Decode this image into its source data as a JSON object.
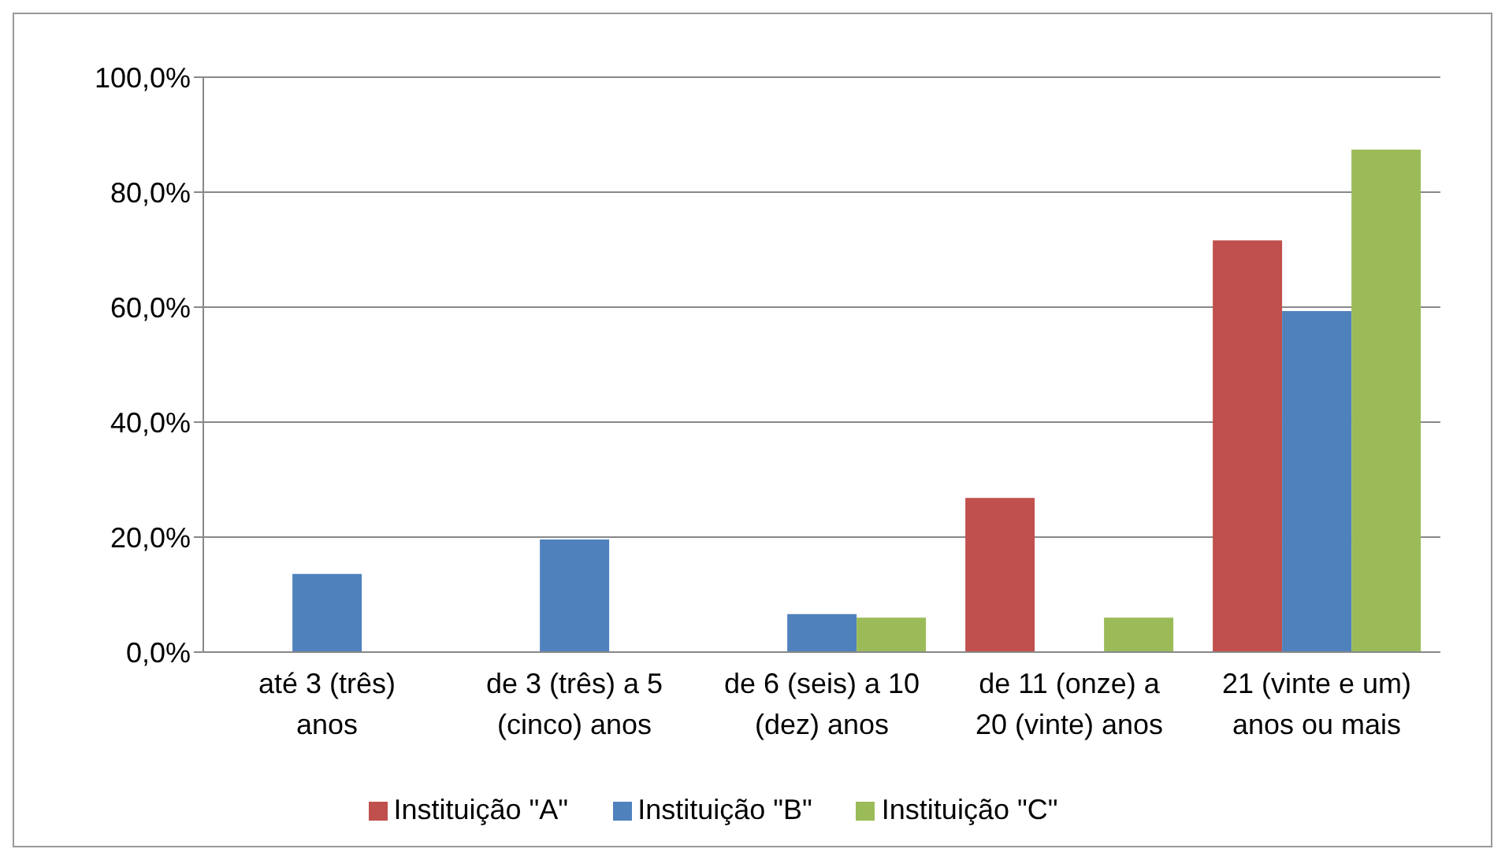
{
  "chart_data": {
    "type": "bar",
    "categories": [
      "até 3 (três) anos",
      "de 3 (três) a 5 (cinco) anos",
      "de 6 (seis) a 10 (dez) anos",
      "de 11 (onze) a 20 (vinte) anos",
      "21 (vinte e um) anos ou mais"
    ],
    "series": [
      {
        "name": "Instituição \"A\"",
        "color": "#c0504d",
        "values": [
          0,
          0,
          0,
          26.8,
          71.6
        ]
      },
      {
        "name": "Instituição \"B\"",
        "color": "#4f81bd",
        "values": [
          13.6,
          19.6,
          6.6,
          0,
          59.3
        ]
      },
      {
        "name": "Instituição \"C\"",
        "color": "#9bbb59",
        "values": [
          0,
          0,
          6,
          6,
          87.4
        ]
      }
    ],
    "ylim": [
      0,
      100
    ],
    "yticks": [
      {
        "value": 0,
        "label": "0,0%"
      },
      {
        "value": 20,
        "label": "20,0%"
      },
      {
        "value": 40,
        "label": "40,0%"
      },
      {
        "value": 60,
        "label": "60,0%"
      },
      {
        "value": 80,
        "label": "80,0%"
      },
      {
        "value": 100,
        "label": "100,0%"
      }
    ],
    "grid": "y",
    "legend": "bottom"
  }
}
